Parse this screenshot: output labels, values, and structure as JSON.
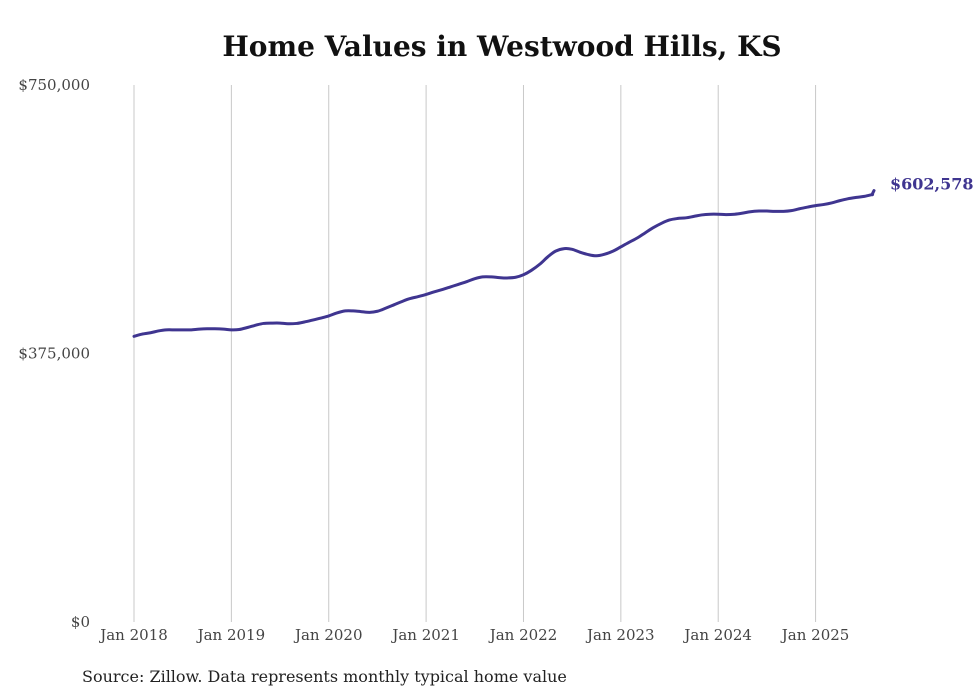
{
  "colors": {
    "line": "#3f3590",
    "grid": "#c8c8c8",
    "text": "#444444"
  },
  "chart_data": {
    "type": "line",
    "title": "Home Values in Westwood Hills, KS",
    "xlabel": "",
    "ylabel": "",
    "ylim": [
      0,
      750000
    ],
    "y_ticks": [
      {
        "value": 0,
        "label": "$0"
      },
      {
        "value": 375000,
        "label": "$375,000"
      },
      {
        "value": 750000,
        "label": "$750,000"
      }
    ],
    "x_range": [
      2018.0,
      2025.6
    ],
    "x_ticks": [
      {
        "value": 2018,
        "label": "Jan 2018"
      },
      {
        "value": 2019,
        "label": "Jan 2019"
      },
      {
        "value": 2020,
        "label": "Jan 2020"
      },
      {
        "value": 2021,
        "label": "Jan 2021"
      },
      {
        "value": 2022,
        "label": "Jan 2022"
      },
      {
        "value": 2023,
        "label": "Jan 2023"
      },
      {
        "value": 2024,
        "label": "Jan 2024"
      },
      {
        "value": 2025,
        "label": "Jan 2025"
      }
    ],
    "grid": "vertical",
    "end_label": "$602,578",
    "series": [
      {
        "name": "Typical home value",
        "points": [
          [
            2018.0,
            399000
          ],
          [
            2018.08,
            402000
          ],
          [
            2018.17,
            404000
          ],
          [
            2018.25,
            406500
          ],
          [
            2018.33,
            408000
          ],
          [
            2018.42,
            408000
          ],
          [
            2018.5,
            408000
          ],
          [
            2018.58,
            408000
          ],
          [
            2018.67,
            409000
          ],
          [
            2018.75,
            409500
          ],
          [
            2018.83,
            409500
          ],
          [
            2018.92,
            409000
          ],
          [
            2019.0,
            408000
          ],
          [
            2019.08,
            408500
          ],
          [
            2019.17,
            411500
          ],
          [
            2019.25,
            414500
          ],
          [
            2019.33,
            417000
          ],
          [
            2019.42,
            417500
          ],
          [
            2019.5,
            417500
          ],
          [
            2019.58,
            416500
          ],
          [
            2019.67,
            417000
          ],
          [
            2019.75,
            419000
          ],
          [
            2019.83,
            421500
          ],
          [
            2019.92,
            424500
          ],
          [
            2020.0,
            427500
          ],
          [
            2020.08,
            431500
          ],
          [
            2020.17,
            434500
          ],
          [
            2020.25,
            434500
          ],
          [
            2020.33,
            433500
          ],
          [
            2020.42,
            432500
          ],
          [
            2020.5,
            434000
          ],
          [
            2020.58,
            438000
          ],
          [
            2020.67,
            443000
          ],
          [
            2020.75,
            447500
          ],
          [
            2020.83,
            451500
          ],
          [
            2020.92,
            454500
          ],
          [
            2021.0,
            457500
          ],
          [
            2021.08,
            461000
          ],
          [
            2021.17,
            464500
          ],
          [
            2021.25,
            468000
          ],
          [
            2021.33,
            471500
          ],
          [
            2021.42,
            475500
          ],
          [
            2021.5,
            479500
          ],
          [
            2021.58,
            482000
          ],
          [
            2021.67,
            482000
          ],
          [
            2021.75,
            481000
          ],
          [
            2021.83,
            480500
          ],
          [
            2021.92,
            481500
          ],
          [
            2022.0,
            485000
          ],
          [
            2022.08,
            491000
          ],
          [
            2022.17,
            500000
          ],
          [
            2022.25,
            510000
          ],
          [
            2022.33,
            518000
          ],
          [
            2022.42,
            521500
          ],
          [
            2022.5,
            520500
          ],
          [
            2022.58,
            516500
          ],
          [
            2022.67,
            513000
          ],
          [
            2022.75,
            511500
          ],
          [
            2022.83,
            513500
          ],
          [
            2022.92,
            518000
          ],
          [
            2023.0,
            524000
          ],
          [
            2023.08,
            530000
          ],
          [
            2023.17,
            536500
          ],
          [
            2023.25,
            543500
          ],
          [
            2023.33,
            550500
          ],
          [
            2023.42,
            557000
          ],
          [
            2023.5,
            561500
          ],
          [
            2023.58,
            563500
          ],
          [
            2023.67,
            564500
          ],
          [
            2023.75,
            566500
          ],
          [
            2023.83,
            568500
          ],
          [
            2023.92,
            569500
          ],
          [
            2024.0,
            569500
          ],
          [
            2024.08,
            569000
          ],
          [
            2024.17,
            569500
          ],
          [
            2024.25,
            571000
          ],
          [
            2024.33,
            573000
          ],
          [
            2024.42,
            574000
          ],
          [
            2024.5,
            574000
          ],
          [
            2024.58,
            573500
          ],
          [
            2024.67,
            573500
          ],
          [
            2024.75,
            574500
          ],
          [
            2024.83,
            577000
          ],
          [
            2024.92,
            579500
          ],
          [
            2025.0,
            581500
          ],
          [
            2025.08,
            583000
          ],
          [
            2025.17,
            585500
          ],
          [
            2025.25,
            588500
          ],
          [
            2025.33,
            591000
          ],
          [
            2025.42,
            593000
          ],
          [
            2025.5,
            594500
          ],
          [
            2025.58,
            597000
          ],
          [
            2025.58,
            597000
          ],
          [
            2025.6,
            602578
          ]
        ]
      }
    ]
  },
  "footer": {
    "source": "Source: Zillow. Data represents monthly typical home value"
  }
}
